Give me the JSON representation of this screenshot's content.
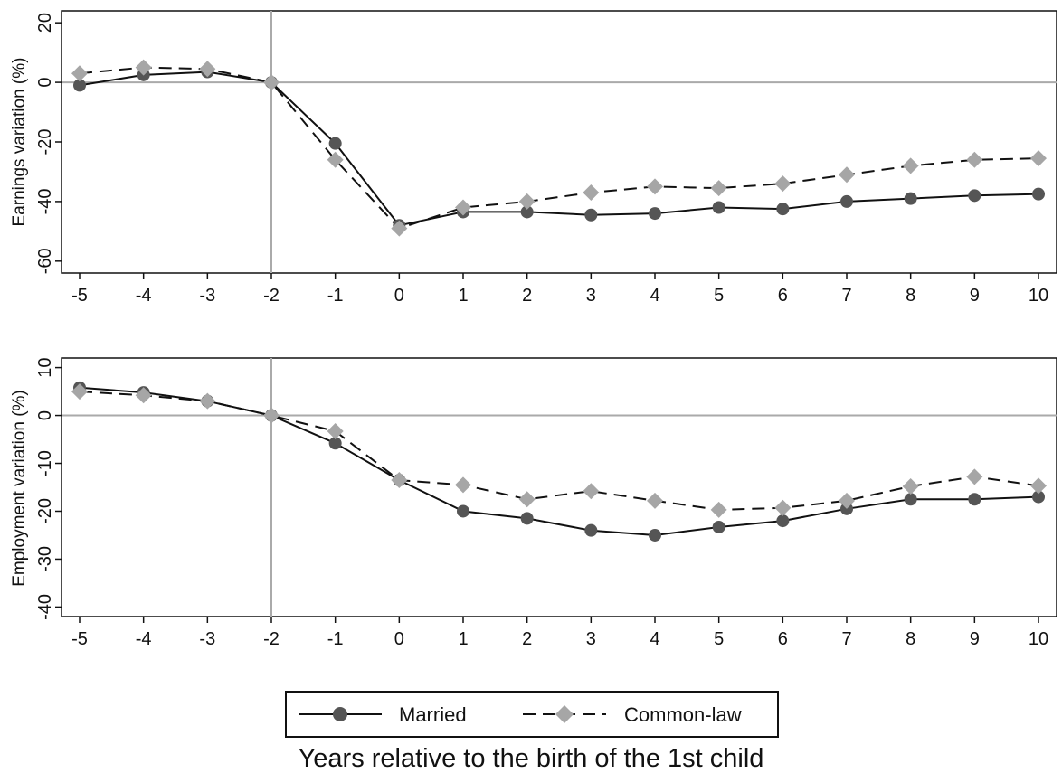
{
  "chart_data": [
    {
      "type": "line",
      "xlabel": "",
      "ylabel": "Earnings variation (%)",
      "x": [
        -5,
        -4,
        -3,
        -2,
        -1,
        0,
        1,
        2,
        3,
        4,
        5,
        6,
        7,
        8,
        9,
        10
      ],
      "xticks": [
        "-5",
        "-4",
        "-3",
        "-2",
        "-1",
        "0",
        "1",
        "2",
        "3",
        "4",
        "5",
        "6",
        "7",
        "8",
        "9",
        "10"
      ],
      "ylim": [
        -64,
        24
      ],
      "yticks": [
        "20",
        "0",
        "-20",
        "-40",
        "-60"
      ],
      "ytick_values": [
        20,
        0,
        -20,
        -40,
        -60
      ],
      "hline": 0,
      "vline": -2,
      "grid": false,
      "series": [
        {
          "name": "Married",
          "values": [
            -1,
            2.5,
            3.5,
            0,
            -20.5,
            -48,
            -43.5,
            -43.5,
            -44.5,
            -44,
            -42,
            -42.5,
            -40,
            -39,
            -38,
            -37.5
          ],
          "color": "#555555",
          "dash": "solid",
          "marker": "circle"
        },
        {
          "name": "Common-law",
          "values": [
            3,
            5,
            4.5,
            0,
            -26,
            -49,
            -42,
            -40,
            -37,
            -35,
            -35.5,
            -34,
            -31,
            -28,
            -26,
            -25.5
          ],
          "color": "#a6a6a6",
          "dash": "dashed",
          "marker": "diamond"
        }
      ]
    },
    {
      "type": "line",
      "xlabel": "Years relative to the birth of the 1st child",
      "ylabel": "Employment variation (%)",
      "x": [
        -5,
        -4,
        -3,
        -2,
        -1,
        0,
        1,
        2,
        3,
        4,
        5,
        6,
        7,
        8,
        9,
        10
      ],
      "xticks": [
        "-5",
        "-4",
        "-3",
        "-2",
        "-1",
        "0",
        "1",
        "2",
        "3",
        "4",
        "5",
        "6",
        "7",
        "8",
        "9",
        "10"
      ],
      "ylim": [
        -42,
        12
      ],
      "yticks": [
        "10",
        "0",
        "-10",
        "-20",
        "-30",
        "-40"
      ],
      "ytick_values": [
        10,
        0,
        -10,
        -20,
        -30,
        -40
      ],
      "hline": 0,
      "vline": -2,
      "grid": false,
      "series": [
        {
          "name": "Married",
          "values": [
            5.8,
            4.8,
            3,
            0,
            -5.8,
            -13.5,
            -20,
            -21.5,
            -24,
            -25,
            -23.3,
            -22,
            -19.5,
            -17.5,
            -17.5,
            -17
          ],
          "color": "#555555",
          "dash": "solid",
          "marker": "circle"
        },
        {
          "name": "Common-law",
          "values": [
            5,
            4.2,
            3,
            0,
            -3.3,
            -13.5,
            -14.5,
            -17.5,
            -15.8,
            -17.8,
            -19.7,
            -19.3,
            -17.8,
            -14.8,
            -12.8,
            -14.7
          ],
          "color": "#a6a6a6",
          "dash": "dashed",
          "marker": "diamond"
        }
      ]
    }
  ],
  "legend": {
    "position": "bottom-center",
    "items": [
      {
        "label": "Married",
        "marker": "circle",
        "dash": "solid"
      },
      {
        "label": "Common-law",
        "marker": "diamond",
        "dash": "dashed"
      }
    ]
  },
  "x_title": "Years relative to the birth of the 1st child"
}
